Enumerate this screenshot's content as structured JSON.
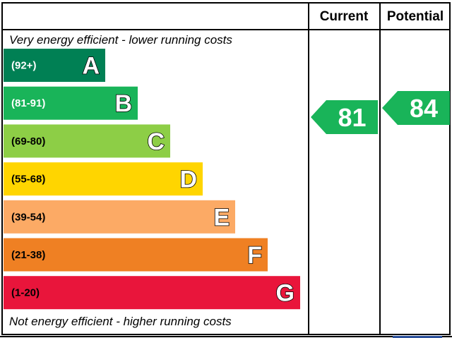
{
  "chart_data": {
    "type": "bar",
    "headers": {
      "current": "Current",
      "potential": "Potential"
    },
    "top_caption": "Very energy efficient - lower running costs",
    "bottom_caption": "Not energy efficient - higher running costs",
    "bands": [
      {
        "letter": "A",
        "range": "(92+)",
        "color": "#008054",
        "range_color": "#ffffff"
      },
      {
        "letter": "B",
        "range": "(81-91)",
        "color": "#19b459",
        "range_color": "#ffffff"
      },
      {
        "letter": "C",
        "range": "(69-80)",
        "color": "#8dce46",
        "range_color": "#000000"
      },
      {
        "letter": "D",
        "range": "(55-68)",
        "color": "#ffd500",
        "range_color": "#000000"
      },
      {
        "letter": "E",
        "range": "(39-54)",
        "color": "#fcaa65",
        "range_color": "#000000"
      },
      {
        "letter": "F",
        "range": "(21-38)",
        "color": "#ef8023",
        "range_color": "#000000"
      },
      {
        "letter": "G",
        "range": "(1-20)",
        "color": "#e9153b",
        "range_color": "#000000"
      }
    ],
    "current": {
      "value": 81,
      "band": "B",
      "color": "#19b459"
    },
    "potential": {
      "value": 84,
      "band": "B",
      "color": "#19b459"
    }
  }
}
